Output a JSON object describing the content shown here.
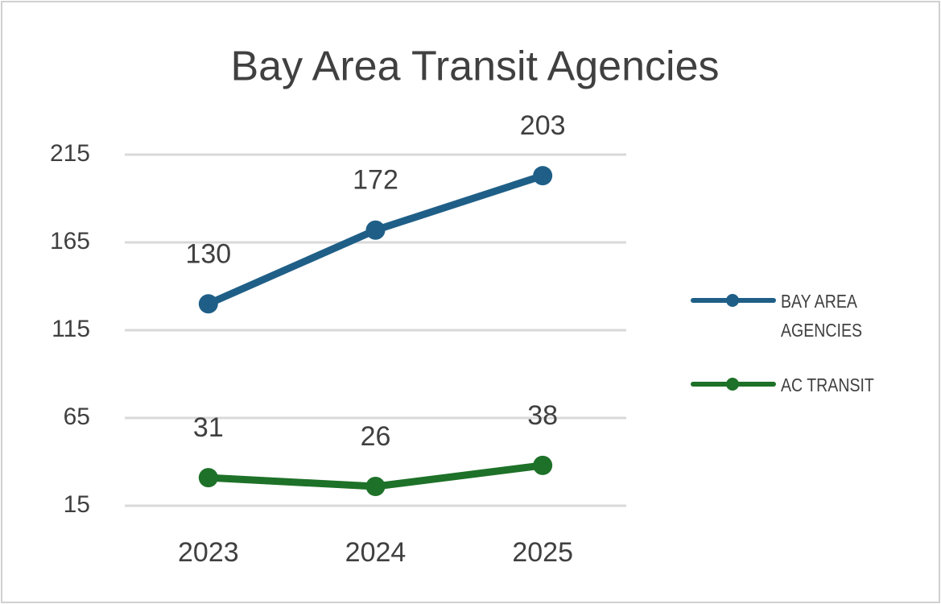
{
  "chart_data": {
    "type": "line",
    "title": "Bay Area Transit Agencies",
    "categories": [
      "2023",
      "2024",
      "2025"
    ],
    "series": [
      {
        "name": "BAY AREA AGENCIES",
        "color": "#1f5f87",
        "values": [
          130,
          172,
          203
        ]
      },
      {
        "name": "AC TRANSIT",
        "color": "#1e7128",
        "values": [
          31,
          26,
          38
        ]
      }
    ],
    "ylim": [
      15,
      215
    ],
    "yticks": [
      15,
      65,
      115,
      165,
      215
    ],
    "grid": true,
    "legend": "right"
  }
}
